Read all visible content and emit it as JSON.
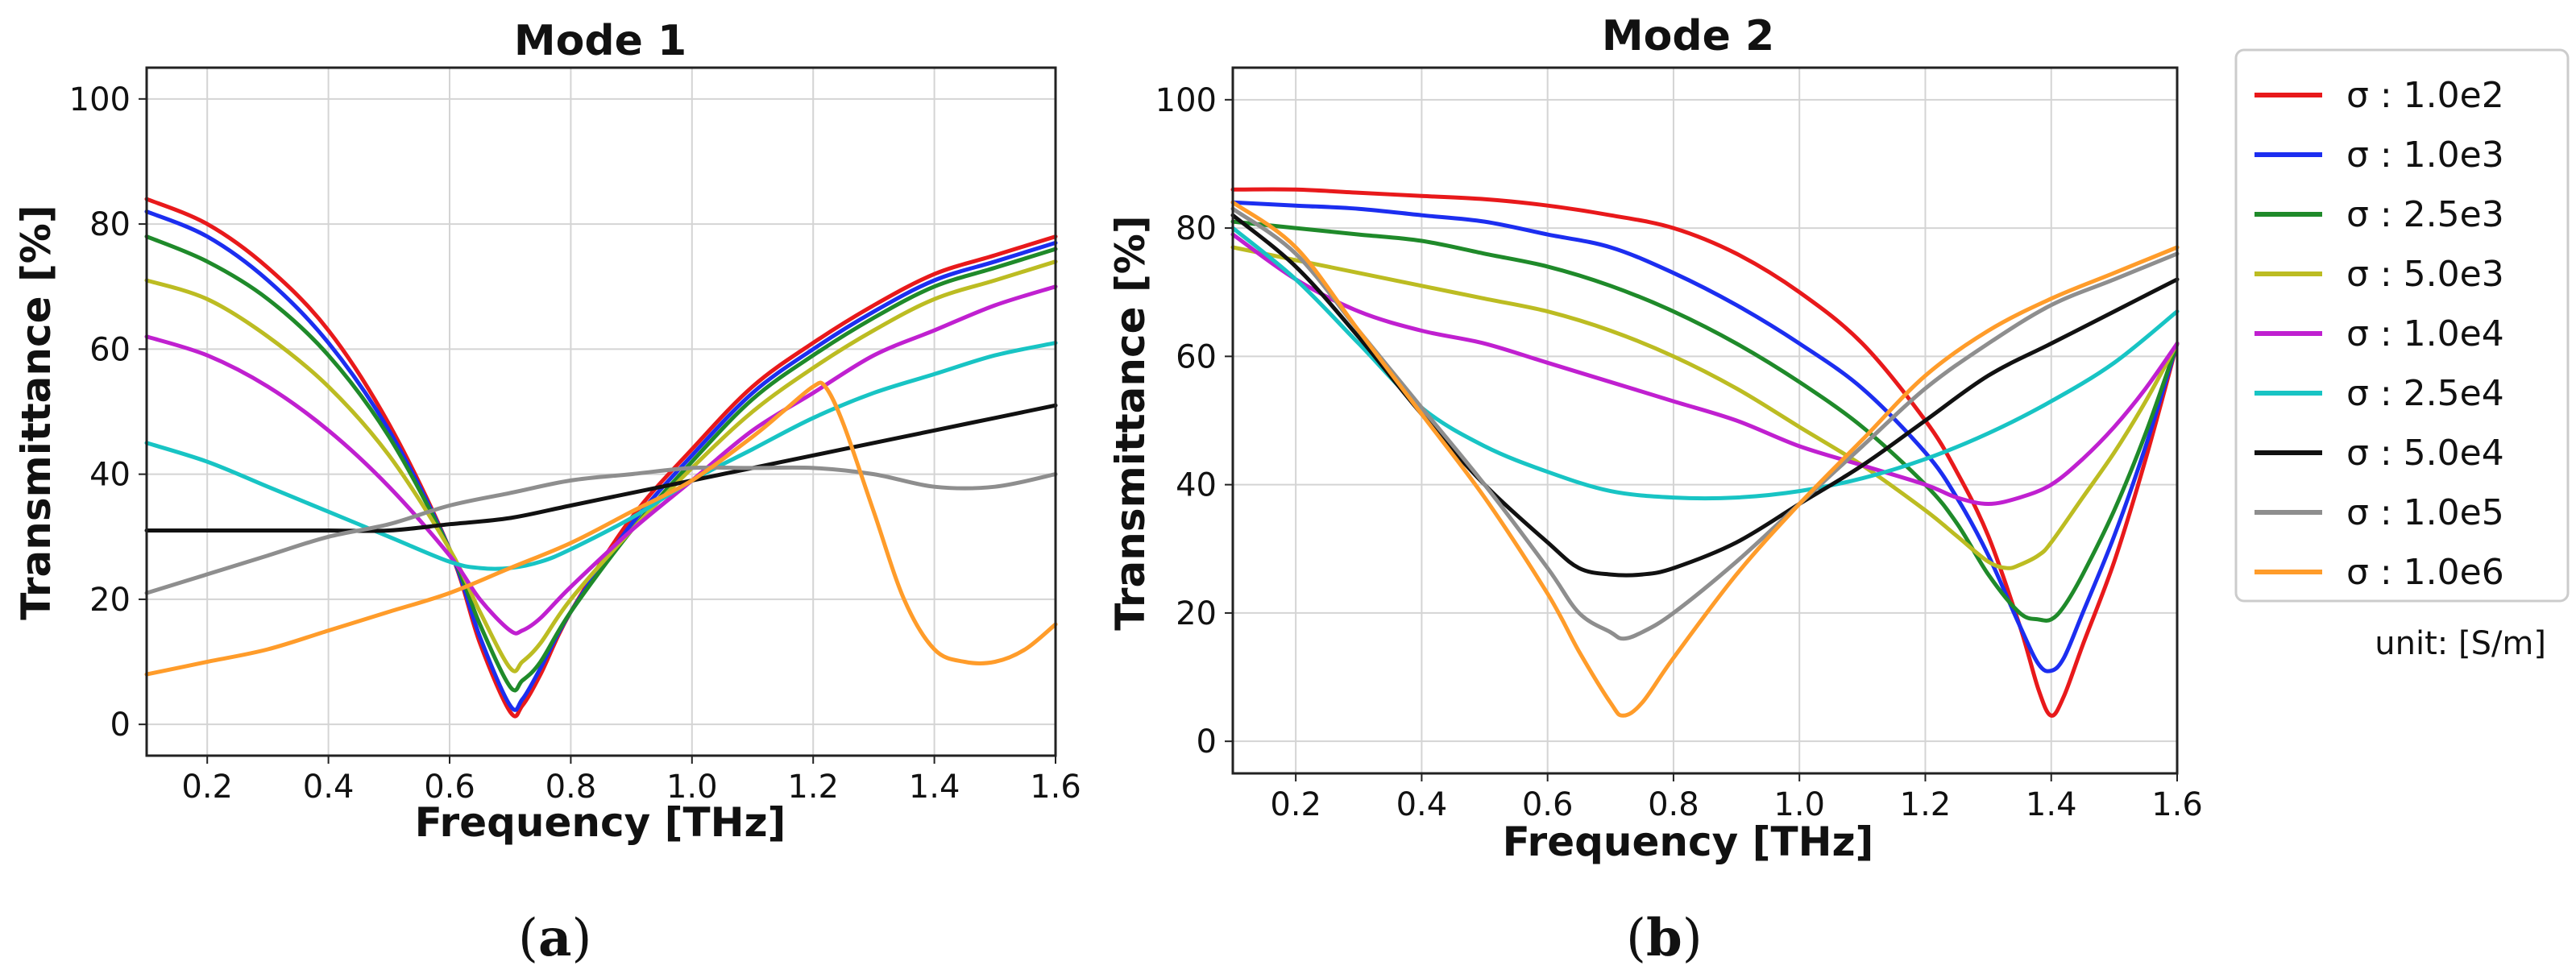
{
  "chart_data": [
    {
      "type": "line",
      "panel_label": "(a)",
      "panel_letter": "a",
      "title": "Mode 1",
      "xlabel": "Frequency [THz]",
      "ylabel": "Transmittance [%]",
      "xlim": [
        0.1,
        1.6
      ],
      "ylim": [
        -5,
        105
      ],
      "xticks": [
        0.2,
        0.4,
        0.6,
        0.8,
        1.0,
        1.2,
        1.4,
        1.6
      ],
      "xtick_labels": [
        "0.2",
        "0.4",
        "0.6",
        "0.8",
        "1.0",
        "1.2",
        "1.4",
        "1.6"
      ],
      "yticks": [
        0,
        20,
        40,
        60,
        80,
        100
      ],
      "ytick_labels": [
        "0",
        "20",
        "40",
        "60",
        "80",
        "100"
      ],
      "grid": true,
      "series": [
        {
          "name": "σ : 1.0e2",
          "color": "#e8191b",
          "x": [
            0.1,
            0.2,
            0.3,
            0.4,
            0.5,
            0.6,
            0.65,
            0.7,
            0.72,
            0.75,
            0.8,
            0.9,
            1.0,
            1.1,
            1.2,
            1.3,
            1.4,
            1.5,
            1.6
          ],
          "y": [
            84,
            80,
            73,
            63,
            48,
            28,
            13,
            2,
            3,
            8,
            18,
            33,
            44,
            54,
            61,
            67,
            72,
            75,
            78
          ]
        },
        {
          "name": "σ : 1.0e3",
          "color": "#1c2ef0",
          "x": [
            0.1,
            0.2,
            0.3,
            0.4,
            0.5,
            0.6,
            0.65,
            0.7,
            0.72,
            0.75,
            0.8,
            0.9,
            1.0,
            1.1,
            1.2,
            1.3,
            1.4,
            1.5,
            1.6
          ],
          "y": [
            82,
            78,
            71,
            61,
            47,
            28,
            14,
            3,
            4,
            9,
            18,
            32,
            43,
            53,
            60,
            66,
            71,
            74,
            77
          ]
        },
        {
          "name": "σ : 2.5e3",
          "color": "#1f8a2a",
          "x": [
            0.1,
            0.2,
            0.3,
            0.4,
            0.5,
            0.6,
            0.65,
            0.7,
            0.72,
            0.75,
            0.8,
            0.9,
            1.0,
            1.1,
            1.2,
            1.3,
            1.4,
            1.5,
            1.6
          ],
          "y": [
            78,
            74,
            68,
            59,
            46,
            28,
            16,
            6,
            7,
            10,
            18,
            31,
            42,
            52,
            59,
            65,
            70,
            73,
            76
          ]
        },
        {
          "name": "σ : 5.0e3",
          "color": "#bcbc22",
          "x": [
            0.1,
            0.2,
            0.3,
            0.4,
            0.5,
            0.6,
            0.65,
            0.7,
            0.72,
            0.75,
            0.8,
            0.9,
            1.0,
            1.1,
            1.2,
            1.3,
            1.4,
            1.5,
            1.6
          ],
          "y": [
            71,
            68,
            62,
            54,
            43,
            28,
            18,
            9,
            10,
            13,
            20,
            31,
            41,
            50,
            57,
            63,
            68,
            71,
            74
          ]
        },
        {
          "name": "σ : 1.0e4",
          "color": "#c020d0",
          "x": [
            0.1,
            0.2,
            0.3,
            0.4,
            0.5,
            0.6,
            0.65,
            0.7,
            0.72,
            0.75,
            0.8,
            0.9,
            1.0,
            1.1,
            1.2,
            1.3,
            1.4,
            1.5,
            1.6
          ],
          "y": [
            62,
            59,
            54,
            47,
            38,
            27,
            20,
            15,
            15,
            17,
            22,
            31,
            39,
            47,
            53,
            59,
            63,
            67,
            70
          ]
        },
        {
          "name": "σ : 2.5e4",
          "color": "#18c4c4",
          "x": [
            0.1,
            0.2,
            0.3,
            0.4,
            0.5,
            0.6,
            0.65,
            0.7,
            0.75,
            0.8,
            0.9,
            1.0,
            1.1,
            1.2,
            1.3,
            1.4,
            1.5,
            1.6
          ],
          "y": [
            45,
            42,
            38,
            34,
            30,
            26,
            25,
            25,
            26,
            28,
            33,
            39,
            44,
            49,
            53,
            56,
            59,
            61
          ]
        },
        {
          "name": "σ : 5.0e4",
          "color": "#111111",
          "x": [
            0.1,
            0.2,
            0.3,
            0.4,
            0.5,
            0.6,
            0.7,
            0.8,
            0.9,
            1.0,
            1.1,
            1.2,
            1.3,
            1.4,
            1.5,
            1.6
          ],
          "y": [
            31,
            31,
            31,
            31,
            31,
            32,
            33,
            35,
            37,
            39,
            41,
            43,
            45,
            47,
            49,
            51
          ]
        },
        {
          "name": "σ : 1.0e5",
          "color": "#8e8e8e",
          "x": [
            0.1,
            0.2,
            0.3,
            0.4,
            0.5,
            0.6,
            0.7,
            0.8,
            0.9,
            1.0,
            1.1,
            1.2,
            1.3,
            1.4,
            1.5,
            1.6
          ],
          "y": [
            21,
            24,
            27,
            30,
            32,
            35,
            37,
            39,
            40,
            41,
            41,
            41,
            40,
            38,
            38,
            40
          ]
        },
        {
          "name": "σ : 1.0e6",
          "color": "#ff9c2a",
          "x": [
            0.1,
            0.2,
            0.3,
            0.4,
            0.5,
            0.6,
            0.7,
            0.8,
            0.9,
            1.0,
            1.1,
            1.15,
            1.2,
            1.22,
            1.25,
            1.3,
            1.35,
            1.4,
            1.45,
            1.5,
            1.55,
            1.6
          ],
          "y": [
            8,
            10,
            12,
            15,
            18,
            21,
            25,
            29,
            34,
            39,
            46,
            50,
            54,
            54,
            48,
            34,
            20,
            12,
            10,
            10,
            12,
            16
          ]
        }
      ]
    },
    {
      "type": "line",
      "panel_label": "(b)",
      "panel_letter": "b",
      "title": "Mode 2",
      "xlabel": "Frequency [THz]",
      "ylabel": "Transmittance [%]",
      "xlim": [
        0.1,
        1.6
      ],
      "ylim": [
        -5,
        105
      ],
      "xticks": [
        0.2,
        0.4,
        0.6,
        0.8,
        1.0,
        1.2,
        1.4,
        1.6
      ],
      "xtick_labels": [
        "0.2",
        "0.4",
        "0.6",
        "0.8",
        "1.0",
        "1.2",
        "1.4",
        "1.6"
      ],
      "yticks": [
        0,
        20,
        40,
        60,
        80,
        100
      ],
      "ytick_labels": [
        "0",
        "20",
        "40",
        "60",
        "80",
        "100"
      ],
      "grid": true,
      "series": [
        {
          "name": "σ : 1.0e2",
          "color": "#e8191b",
          "x": [
            0.1,
            0.2,
            0.3,
            0.4,
            0.5,
            0.6,
            0.7,
            0.8,
            0.9,
            1.0,
            1.1,
            1.2,
            1.25,
            1.3,
            1.35,
            1.38,
            1.4,
            1.42,
            1.45,
            1.5,
            1.55,
            1.6
          ],
          "y": [
            86,
            86,
            85.5,
            85,
            84.5,
            83.5,
            82,
            80,
            76,
            70,
            62,
            50,
            42,
            32,
            18,
            8,
            4,
            7,
            15,
            28,
            44,
            62
          ]
        },
        {
          "name": "σ : 1.0e3",
          "color": "#1c2ef0",
          "x": [
            0.1,
            0.2,
            0.3,
            0.4,
            0.5,
            0.6,
            0.7,
            0.8,
            0.9,
            1.0,
            1.1,
            1.2,
            1.25,
            1.3,
            1.35,
            1.38,
            1.4,
            1.42,
            1.45,
            1.5,
            1.55,
            1.6
          ],
          "y": [
            84,
            83.5,
            83,
            82,
            81,
            79,
            77,
            73,
            68,
            62,
            55,
            45,
            38,
            29,
            18,
            12,
            11,
            13,
            20,
            32,
            46,
            62
          ]
        },
        {
          "name": "σ : 2.5e3",
          "color": "#1f8a2a",
          "x": [
            0.1,
            0.2,
            0.3,
            0.4,
            0.5,
            0.6,
            0.7,
            0.8,
            0.9,
            1.0,
            1.1,
            1.2,
            1.25,
            1.3,
            1.35,
            1.38,
            1.4,
            1.42,
            1.45,
            1.5,
            1.55,
            1.6
          ],
          "y": [
            81,
            80,
            79,
            78,
            76,
            74,
            71,
            67,
            62,
            56,
            49,
            40,
            34,
            26,
            20,
            19,
            19,
            21,
            26,
            36,
            48,
            62
          ]
        },
        {
          "name": "σ : 5.0e3",
          "color": "#bcbc22",
          "x": [
            0.1,
            0.2,
            0.3,
            0.4,
            0.5,
            0.6,
            0.7,
            0.8,
            0.9,
            1.0,
            1.1,
            1.2,
            1.25,
            1.3,
            1.33,
            1.35,
            1.38,
            1.4,
            1.45,
            1.5,
            1.55,
            1.6
          ],
          "y": [
            77,
            75,
            73,
            71,
            69,
            67,
            64,
            60,
            55,
            49,
            43,
            36,
            32,
            28,
            27,
            27.5,
            29,
            31,
            38,
            45,
            53,
            62
          ]
        },
        {
          "name": "σ : 1.0e4",
          "color": "#c020d0",
          "x": [
            0.1,
            0.2,
            0.3,
            0.4,
            0.5,
            0.6,
            0.7,
            0.8,
            0.9,
            1.0,
            1.1,
            1.2,
            1.25,
            1.3,
            1.35,
            1.4,
            1.45,
            1.5,
            1.55,
            1.6
          ],
          "y": [
            79,
            72,
            67,
            64,
            62,
            59,
            56,
            53,
            50,
            46,
            43,
            40,
            38,
            37,
            38,
            40,
            44,
            49,
            55,
            62
          ]
        },
        {
          "name": "σ : 2.5e4",
          "color": "#18c4c4",
          "x": [
            0.1,
            0.2,
            0.3,
            0.4,
            0.5,
            0.6,
            0.7,
            0.8,
            0.9,
            1.0,
            1.1,
            1.2,
            1.3,
            1.4,
            1.5,
            1.6
          ],
          "y": [
            80,
            72,
            62,
            52,
            46,
            42,
            39,
            38,
            38,
            39,
            41,
            44,
            48,
            53,
            59,
            67
          ]
        },
        {
          "name": "σ : 5.0e4",
          "color": "#111111",
          "x": [
            0.1,
            0.2,
            0.3,
            0.4,
            0.5,
            0.6,
            0.65,
            0.7,
            0.75,
            0.8,
            0.9,
            1.0,
            1.1,
            1.2,
            1.3,
            1.4,
            1.5,
            1.6
          ],
          "y": [
            82,
            74,
            63,
            51,
            40,
            31,
            27,
            26,
            26,
            27,
            31,
            37,
            43,
            50,
            57,
            62,
            67,
            72
          ]
        },
        {
          "name": "σ : 1.0e5",
          "color": "#8e8e8e",
          "x": [
            0.1,
            0.2,
            0.3,
            0.4,
            0.5,
            0.6,
            0.65,
            0.7,
            0.72,
            0.75,
            0.8,
            0.9,
            1.0,
            1.1,
            1.2,
            1.3,
            1.4,
            1.5,
            1.6
          ],
          "y": [
            83,
            76,
            64,
            52,
            40,
            27,
            20,
            17,
            16,
            17,
            20,
            28,
            37,
            46,
            55,
            62,
            68,
            72,
            76
          ]
        },
        {
          "name": "σ : 1.0e6",
          "color": "#ff9c2a",
          "x": [
            0.1,
            0.2,
            0.3,
            0.4,
            0.5,
            0.6,
            0.65,
            0.7,
            0.72,
            0.75,
            0.8,
            0.9,
            1.0,
            1.1,
            1.2,
            1.3,
            1.4,
            1.5,
            1.6
          ],
          "y": [
            84,
            77,
            64,
            51,
            38,
            23,
            14,
            6,
            4,
            6,
            13,
            26,
            37,
            47,
            57,
            64,
            69,
            73,
            77
          ]
        }
      ]
    }
  ],
  "legend": {
    "placement": "right",
    "entries": [
      {
        "label": "σ : 1.0e2",
        "color": "#e8191b"
      },
      {
        "label": "σ : 1.0e3",
        "color": "#1c2ef0"
      },
      {
        "label": "σ : 2.5e3",
        "color": "#1f8a2a"
      },
      {
        "label": "σ : 5.0e3",
        "color": "#bcbc22"
      },
      {
        "label": "σ : 1.0e4",
        "color": "#c020d0"
      },
      {
        "label": "σ : 2.5e4",
        "color": "#18c4c4"
      },
      {
        "label": "σ : 5.0e4",
        "color": "#111111"
      },
      {
        "label": "σ : 1.0e5",
        "color": "#8e8e8e"
      },
      {
        "label": "σ : 1.0e6",
        "color": "#ff9c2a"
      }
    ],
    "unit": "unit: [S/m]"
  }
}
